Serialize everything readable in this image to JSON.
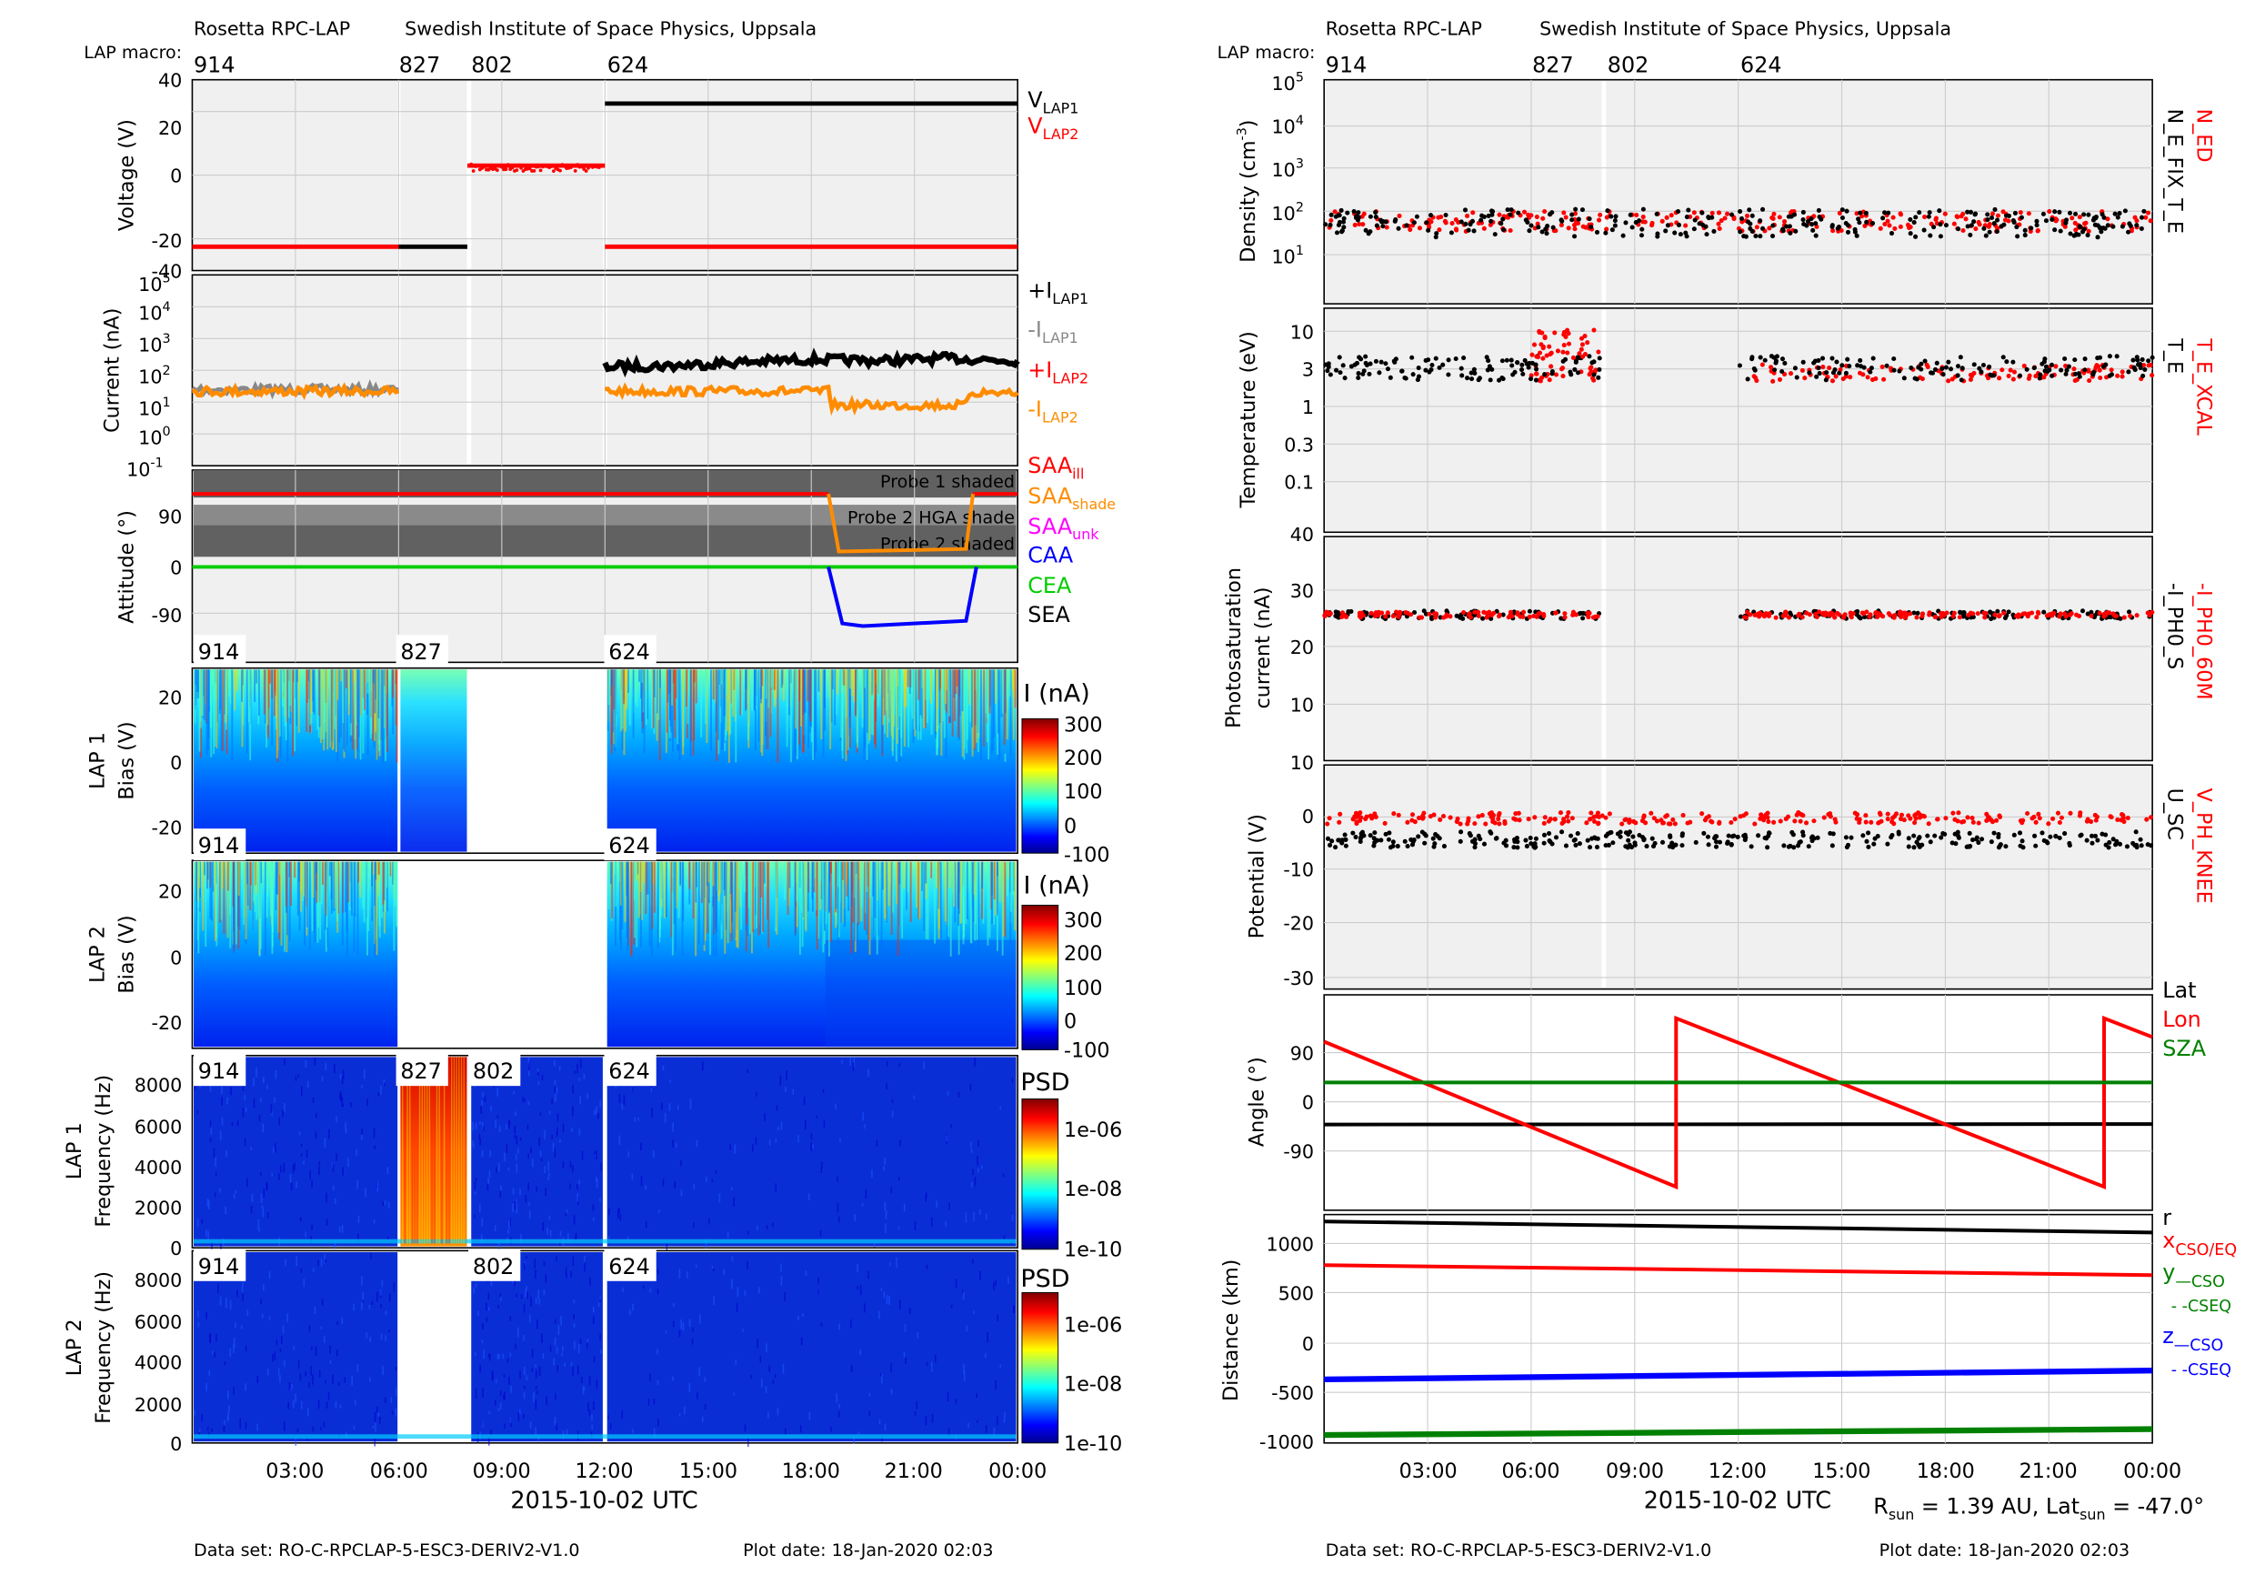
{
  "header": {
    "left_title": "Rosetta RPC-LAP",
    "left_institute": "Swedish Institute of Space Physics, Uppsala",
    "right_title": "Rosetta RPC-LAP",
    "right_institute": "Swedish Institute of Space Physics, Uppsala",
    "macro_label": "LAP macro:",
    "macros": [
      "914",
      "827",
      "802",
      "624"
    ]
  },
  "footer": {
    "dataset": "Data set: RO-C-RPCLAP-5-ESC3-DERIV2-V1.0",
    "plot_date": "Plot date: 18-Jan-2020 02:03",
    "xlabel": "2015-10-02 UTC",
    "rsun": "R",
    "rsun_sub": "sun",
    "rsun_val": " = 1.39 AU, Lat",
    "lat_sub": "sun",
    "lat_val": " = -47.0°"
  },
  "time_ticks": [
    "03:00",
    "06:00",
    "09:00",
    "12:00",
    "15:00",
    "18:00",
    "21:00",
    "00:00"
  ],
  "colorbar_labels": {
    "current_title": "I (nA)",
    "current_ticks": [
      "300",
      "200",
      "100",
      "0",
      "-100"
    ],
    "psd_title": "PSD",
    "psd_ticks": [
      "1e-06",
      "1e-08",
      "1e-10"
    ]
  },
  "shade_labels": [
    "Probe 1 shaded",
    "Probe 2 HGA shade",
    "Probe 2 shaded"
  ],
  "chart_data": [
    {
      "type": "line",
      "panel": "voltage",
      "ylabel": "Voltage (V)",
      "ylim": [
        -40,
        40
      ],
      "yticks": [
        "40",
        "20",
        "0",
        "-20",
        "-40"
      ],
      "legend": [
        {
          "name": "V",
          "sub": "LAP1",
          "color": "#000000"
        },
        {
          "name": "V",
          "sub": "LAP2",
          "color": "#ff0000"
        }
      ],
      "series": [
        {
          "name": "VLAP1",
          "color": "#000000",
          "segments": [
            {
              "x": [
                6.0,
                8.0
              ],
              "y": [
                -30,
                -30
              ]
            },
            {
              "x": [
                12.0,
                24.0
              ],
              "y": [
                30,
                30
              ]
            }
          ]
        },
        {
          "name": "VLAP2",
          "color": "#ff0000",
          "segments": [
            {
              "x": [
                0.0,
                6.0
              ],
              "y": [
                -30,
                -30
              ]
            },
            {
              "x": [
                8.0,
                12.0
              ],
              "y": [
                4,
                4
              ]
            },
            {
              "x": [
                12.0,
                24.0
              ],
              "y": [
                -30,
                -30
              ]
            }
          ]
        }
      ]
    },
    {
      "type": "line",
      "panel": "current",
      "ylabel": "Current (nA)",
      "yscale": "log",
      "ylim": [
        0.1,
        100000
      ],
      "yticks": [
        "10^{5}",
        "10^{4}",
        "10^{3}",
        "10^{2}",
        "10^{1}",
        "10^{0}",
        "10^{-1}"
      ],
      "legend": [
        {
          "name": "+I",
          "sub": "LAP1",
          "color": "#000000"
        },
        {
          "name": "-I",
          "sub": "LAP1",
          "color": "#888888"
        },
        {
          "name": "+I",
          "sub": "LAP2",
          "color": "#ff0000"
        },
        {
          "name": "-I",
          "sub": "LAP2",
          "color": "#ff8c00"
        }
      ],
      "series": [
        {
          "name": "-ILAP1",
          "color": "#888888",
          "segments": [
            {
              "x": [
                0.0,
                6.0
              ],
              "y": [
                25,
                25
              ]
            }
          ]
        },
        {
          "name": "+ILAP1",
          "color": "#000000",
          "segments": [
            {
              "x": [
                12.0,
                14.0,
                16.0,
                18.0,
                20.0,
                22.0,
                24.0
              ],
              "y": [
                130,
                140,
                180,
                220,
                200,
                240,
                200
              ]
            }
          ]
        },
        {
          "name": "-ILAP2",
          "color": "#ff8c00",
          "segments": [
            {
              "x": [
                0.0,
                6.0
              ],
              "y": [
                22,
                22
              ]
            },
            {
              "x": [
                12.0,
                18.5,
                18.6,
                22.5,
                22.6,
                24.0
              ],
              "y": [
                22,
                22,
                8,
                8,
                20,
                20
              ]
            }
          ]
        }
      ]
    },
    {
      "type": "line",
      "panel": "attitude",
      "ylabel": "Attitude (°)",
      "yticks": [
        "90",
        "0",
        "-90"
      ],
      "legend": [
        {
          "name": "SAA",
          "sub": "ill",
          "color": "#ff0000"
        },
        {
          "name": "SAA",
          "sub": "shade",
          "color": "#ff8c00"
        },
        {
          "name": "SAA",
          "sub": "unk",
          "color": "#ff00ff"
        },
        {
          "name": "CAA",
          "sub": "",
          "color": "#0000ff"
        },
        {
          "name": "CEA",
          "sub": "",
          "color": "#00cc00"
        },
        {
          "name": "SEA",
          "sub": "",
          "color": "#000000"
        }
      ],
      "series": [
        {
          "name": "SAA",
          "color": "#ff0000",
          "segments": [
            {
              "x": [
                0.0,
                18.5
              ],
              "y": [
                142,
                142
              ]
            },
            {
              "x": [
                22.7,
                24.0
              ],
              "y": [
                142,
                142
              ]
            }
          ]
        },
        {
          "name": "SAA shade",
          "color": "#ff8c00",
          "segments": [
            {
              "x": [
                18.5,
                18.8,
                22.5,
                22.7
              ],
              "y": [
                142,
                30,
                35,
                142
              ]
            }
          ]
        },
        {
          "name": "CEA",
          "color": "#00cc00",
          "segments": [
            {
              "x": [
                0.0,
                24.0
              ],
              "y": [
                0,
                0
              ]
            }
          ]
        },
        {
          "name": "CAA",
          "color": "#0000ff",
          "segments": [
            {
              "x": [
                18.5,
                18.9,
                19.5,
                22.5,
                22.8
              ],
              "y": [
                0,
                -110,
                -115,
                -105,
                0
              ]
            }
          ]
        }
      ]
    },
    {
      "type": "heatmap",
      "panel": "LAP 1 bias sweep",
      "ylabel": [
        "LAP 1",
        "Bias (V)"
      ],
      "yticks": [
        "20",
        "0",
        "-20"
      ],
      "macros_shown": [
        "914",
        "827",
        "624"
      ]
    },
    {
      "type": "heatmap",
      "panel": "LAP 2 bias sweep",
      "ylabel": [
        "LAP 2",
        "Bias (V)"
      ],
      "yticks": [
        "20",
        "0",
        "-20"
      ],
      "macros_shown": [
        "914",
        "624"
      ]
    },
    {
      "type": "heatmap",
      "panel": "LAP 1 spectrum",
      "ylabel": [
        "LAP 1",
        "Frequency (Hz)"
      ],
      "yticks": [
        "8000",
        "6000",
        "4000",
        "2000",
        "0"
      ],
      "macros_shown": [
        "914",
        "827",
        "802",
        "624"
      ]
    },
    {
      "type": "heatmap",
      "panel": "LAP 2 spectrum",
      "ylabel": [
        "LAP 2",
        "Frequency (Hz)"
      ],
      "yticks": [
        "8000",
        "6000",
        "4000",
        "2000",
        "0"
      ],
      "macros_shown": [
        "914",
        "802",
        "624"
      ]
    },
    {
      "type": "scatter",
      "panel": "density",
      "ylabel": "Density (cm⁻³)",
      "yscale": "log",
      "yticks": [
        "10^{5}",
        "10^{4}",
        "10^{3}",
        "10^{2}",
        "10^{1}"
      ],
      "right_labels": [
        {
          "text": "N_ED",
          "color": "#ff0000"
        },
        {
          "text": "N_E_FIX_T_E",
          "color": "#000000"
        }
      ],
      "series": [
        {
          "name": "N_ED",
          "color": "#ff0000",
          "level": 60
        },
        {
          "name": "N_E_FIX_T_E",
          "color": "#000000",
          "level": 55
        }
      ]
    },
    {
      "type": "scatter",
      "panel": "temperature",
      "ylabel": "Temperature (eV)",
      "yscale": "log",
      "yticks": [
        "10",
        "3",
        "1",
        "0.3",
        "0.1"
      ],
      "right_labels": [
        {
          "text": "T_E_XCAL",
          "color": "#ff0000"
        },
        {
          "text": "T_E",
          "color": "#000000"
        }
      ],
      "series": [
        {
          "name": "T_E_XCAL",
          "color": "#ff0000",
          "level": 3
        },
        {
          "name": "T_E",
          "color": "#000000",
          "level": 3.5
        }
      ]
    },
    {
      "type": "scatter",
      "panel": "photosaturation",
      "ylabel": [
        "Photosaturation",
        "current (nA)"
      ],
      "yticks": [
        "40",
        "30",
        "20",
        "10"
      ],
      "ylim": [
        10,
        40
      ],
      "right_labels": [
        {
          "text": "-I_PH0_60M",
          "color": "#ff0000"
        },
        {
          "text": "-I_PH0_S",
          "color": "#000000"
        }
      ],
      "series": [
        {
          "name": "-I_PH0_S",
          "color": "#000000",
          "level": 26
        },
        {
          "name": "-I_PH0_60M",
          "color": "#ff0000",
          "level": 26
        }
      ]
    },
    {
      "type": "scatter",
      "panel": "potential",
      "ylabel": "Potential (V)",
      "yticks": [
        "10",
        "0",
        "-10",
        "-20",
        "-30"
      ],
      "ylim": [
        -32,
        10
      ],
      "right_labels": [
        {
          "text": "V_PH_KNEE",
          "color": "#ff0000"
        },
        {
          "text": "U_SC",
          "color": "#000000"
        }
      ],
      "series": [
        {
          "name": "V_PH_KNEE",
          "color": "#ff0000",
          "level": 0
        },
        {
          "name": "U_SC",
          "color": "#000000",
          "level": -4
        }
      ]
    },
    {
      "type": "line",
      "panel": "angle",
      "ylabel": "Angle (°)",
      "yticks": [
        "90",
        "0",
        "-90"
      ],
      "ylim": [
        -230,
        230
      ],
      "legend": [
        {
          "name": "Lat",
          "sub": "",
          "color": "#000000"
        },
        {
          "name": "Lon",
          "sub": "",
          "color": "#ff0000"
        },
        {
          "name": "SZA",
          "sub": "",
          "color": "#008000"
        }
      ],
      "series": [
        {
          "name": "Lat",
          "color": "#000000",
          "segments": [
            {
              "x": [
                0.0,
                24.0
              ],
              "y": [
                -47,
                -46
              ]
            }
          ]
        },
        {
          "name": "Lon",
          "color": "#ff0000",
          "segments": [
            {
              "x": [
                0.0,
                10.2,
                10.2,
                22.6,
                22.6,
                24.0
              ],
              "y": [
                130,
                -180,
                180,
                -180,
                180,
                140
              ]
            }
          ]
        },
        {
          "name": "SZA",
          "color": "#008000",
          "segments": [
            {
              "x": [
                0.0,
                24.0
              ],
              "y": [
                43,
                43
              ]
            }
          ]
        }
      ]
    },
    {
      "type": "line",
      "panel": "distance",
      "ylabel": "Distance (km)",
      "yticks": [
        "1000",
        "500",
        "0",
        "-500",
        "-1000"
      ],
      "ylim": [
        -1000,
        1300
      ],
      "legend": [
        {
          "name": "r",
          "sub": "",
          "color": "#000000"
        },
        {
          "name": "x",
          "sub": "CSO/EQ",
          "color": "#ff0000"
        },
        {
          "name": "y",
          "sub": "—CSO",
          "color": "#008000"
        },
        {
          "name": "- -CSEQ",
          "sub": "",
          "color": "#008000"
        },
        {
          "name": "z",
          "sub": "—CSO",
          "color": "#0000ff"
        },
        {
          "name": "- -CSEQ",
          "sub": "",
          "color": "#0000ff"
        }
      ],
      "series": [
        {
          "name": "r",
          "color": "#000000",
          "segments": [
            {
              "x": [
                0.0,
                24.0
              ],
              "y": [
                1230,
                1120
              ]
            }
          ]
        },
        {
          "name": "x",
          "color": "#ff0000",
          "segments": [
            {
              "x": [
                0.0,
                24.0
              ],
              "y": [
                790,
                690
              ]
            }
          ]
        },
        {
          "name": "z",
          "color": "#0000ff",
          "segments": [
            {
              "x": [
                0.0,
                24.0
              ],
              "y": [
                -360,
                -270
              ]
            }
          ]
        },
        {
          "name": "y",
          "color": "#008000",
          "segments": [
            {
              "x": [
                0.0,
                24.0
              ],
              "y": [
                -920,
                -860
              ]
            }
          ]
        }
      ]
    }
  ]
}
